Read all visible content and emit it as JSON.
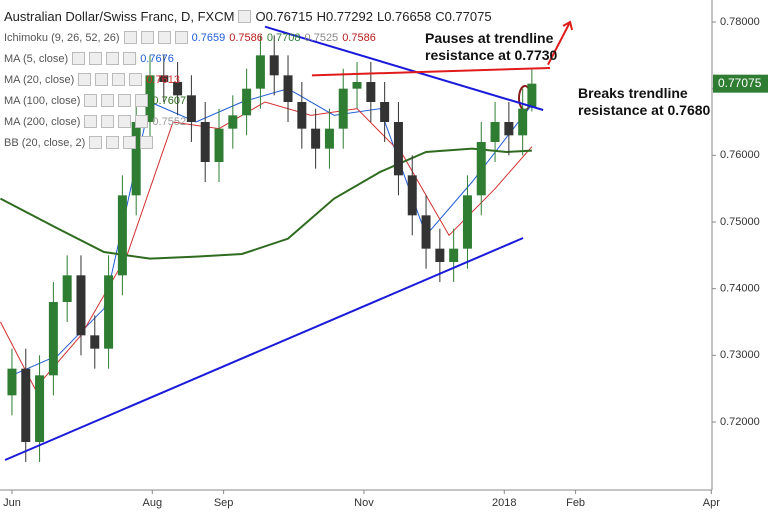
{
  "chart_data": {
    "type": "candlestick",
    "title": "Australian Dollar/Swiss Franc, D, FXCM",
    "ohlc": [
      {
        "label": "O",
        "value": 0.76715
      },
      {
        "label": "H",
        "value": 0.77292
      },
      {
        "label": "L",
        "value": 0.76658
      },
      {
        "label": "C",
        "value": 0.77075
      }
    ],
    "xlim": [
      -5.2,
      304.3
    ],
    "xticks": [
      {
        "value": 0,
        "label": "Jun"
      },
      {
        "value": 61,
        "label": "Aug"
      },
      {
        "value": 92,
        "label": "Sep"
      },
      {
        "value": 153,
        "label": "Nov"
      },
      {
        "value": 214,
        "label": "2018"
      },
      {
        "value": 245,
        "label": "Feb"
      },
      {
        "value": 304,
        "label": "Apr"
      }
    ],
    "ylim": [
      0.7098,
      0.7833
    ],
    "yticks": [
      {
        "value": 0.72,
        "label": "0.72000"
      },
      {
        "value": 0.73,
        "label": "0.73000"
      },
      {
        "value": 0.74,
        "label": "0.74000"
      },
      {
        "value": 0.75,
        "label": "0.75000"
      },
      {
        "value": 0.76,
        "label": "0.76000"
      },
      {
        "value": 0.77,
        "label": "0.77000"
      },
      {
        "value": 0.78,
        "label": "0.78000"
      }
    ],
    "up_color": "#2e7d32",
    "down_color": "#333333",
    "x": [
      0,
      6,
      12,
      18,
      24,
      30,
      36,
      42,
      48,
      54,
      60,
      66,
      72,
      78,
      84,
      90,
      96,
      102,
      108,
      114,
      120,
      126,
      132,
      138,
      144,
      150,
      156,
      162,
      168,
      174,
      180,
      186,
      192,
      198,
      204,
      210,
      216,
      222,
      226
    ],
    "open": [
      0.724,
      0.728,
      0.717,
      0.727,
      0.738,
      0.742,
      0.733,
      0.731,
      0.742,
      0.754,
      0.765,
      0.772,
      0.771,
      0.769,
      0.765,
      0.759,
      0.764,
      0.766,
      0.77,
      0.775,
      0.772,
      0.768,
      0.764,
      0.761,
      0.764,
      0.77,
      0.771,
      0.768,
      0.765,
      0.757,
      0.751,
      0.746,
      0.744,
      0.746,
      0.754,
      0.762,
      0.765,
      0.763,
      0.76715
    ],
    "high": [
      0.731,
      0.731,
      0.73,
      0.741,
      0.745,
      0.745,
      0.736,
      0.745,
      0.757,
      0.768,
      0.775,
      0.775,
      0.774,
      0.772,
      0.768,
      0.767,
      0.769,
      0.773,
      0.778,
      0.778,
      0.775,
      0.771,
      0.767,
      0.767,
      0.773,
      0.774,
      0.774,
      0.771,
      0.768,
      0.76,
      0.754,
      0.749,
      0.749,
      0.757,
      0.765,
      0.768,
      0.768,
      0.77,
      0.77292
    ],
    "low": [
      0.721,
      0.714,
      0.714,
      0.724,
      0.735,
      0.73,
      0.728,
      0.728,
      0.739,
      0.751,
      0.762,
      0.768,
      0.766,
      0.762,
      0.756,
      0.756,
      0.761,
      0.763,
      0.767,
      0.769,
      0.765,
      0.761,
      0.758,
      0.758,
      0.761,
      0.767,
      0.765,
      0.762,
      0.754,
      0.748,
      0.743,
      0.741,
      0.741,
      0.743,
      0.751,
      0.759,
      0.76,
      0.76,
      0.76658
    ],
    "close": [
      0.728,
      0.717,
      0.727,
      0.738,
      0.742,
      0.733,
      0.731,
      0.742,
      0.754,
      0.765,
      0.772,
      0.771,
      0.769,
      0.765,
      0.759,
      0.764,
      0.766,
      0.77,
      0.775,
      0.772,
      0.768,
      0.764,
      0.761,
      0.764,
      0.77,
      0.771,
      0.768,
      0.765,
      0.757,
      0.751,
      0.746,
      0.744,
      0.746,
      0.754,
      0.762,
      0.765,
      0.763,
      0.767,
      0.77075
    ],
    "last_price": 0.77075,
    "indicators": [
      {
        "name": "Ichimoku (9, 26, 52, 26)",
        "values": [
          0.7659,
          0.7586,
          0.7708,
          0.7525,
          0.7586
        ],
        "colors": [
          "#1e5bd6",
          "#b71c1c",
          "#2e7d32",
          "#888888",
          "#b71c1c"
        ]
      },
      {
        "name": "MA (5, close)",
        "values": [
          0.7676
        ],
        "colors": [
          "#1e5bd6"
        ],
        "line_x": [
          0,
          20,
          40,
          60,
          80,
          100,
          120,
          140,
          160,
          180,
          200,
          226
        ],
        "line_values": [
          0.727,
          0.73,
          0.737,
          0.768,
          0.765,
          0.768,
          0.77,
          0.766,
          0.767,
          0.748,
          0.756,
          0.7676
        ]
      },
      {
        "name": "MA (20, close)",
        "values": [
          0.7613
        ],
        "colors": [
          "#d32f2f"
        ],
        "line_x": [
          -5,
          10,
          30,
          50,
          70,
          90,
          110,
          130,
          150,
          170,
          190,
          210,
          226
        ],
        "line_values": [
          0.735,
          0.725,
          0.733,
          0.745,
          0.765,
          0.764,
          0.768,
          0.766,
          0.767,
          0.76,
          0.748,
          0.755,
          0.7613
        ]
      },
      {
        "name": "MA (100, close)",
        "values": [
          0.7607
        ],
        "colors": [
          "#2e6b1f"
        ],
        "line_x": [
          -5,
          20,
          40,
          60,
          80,
          100,
          120,
          140,
          160,
          180,
          200,
          215,
          226
        ],
        "line_values": [
          0.7535,
          0.749,
          0.7455,
          0.7445,
          0.7448,
          0.7452,
          0.7475,
          0.7535,
          0.7575,
          0.7605,
          0.761,
          0.7605,
          0.7607
        ]
      },
      {
        "name": "MA (200, close)",
        "values": [
          0.7552
        ],
        "colors": [
          "#999999"
        ]
      },
      {
        "name": "BB (20, close, 2)",
        "values": [],
        "colors": []
      }
    ],
    "trendlines": [
      {
        "color": "#1a1adb",
        "x": [
          -3,
          222.2
        ],
        "values": [
          0.7143,
          0.7476
        ]
      },
      {
        "color": "#1a1adb",
        "x": [
          110,
          230.9
        ],
        "values": [
          0.7793,
          0.7668
        ]
      },
      {
        "color": "#e01b1b",
        "x": [
          130.4,
          233.9
        ],
        "values": [
          0.772,
          0.7731
        ]
      },
      {
        "color": "#e01b1b",
        "x": [
          233,
          242.6
        ],
        "values": [
          0.7736,
          0.78
        ]
      }
    ],
    "annotations": [
      {
        "text": [
          "Pauses at trendline",
          "resistance at 0.7730"
        ]
      },
      {
        "text": [
          "Breaks trendline",
          "resistance at 0.7680"
        ]
      }
    ]
  }
}
